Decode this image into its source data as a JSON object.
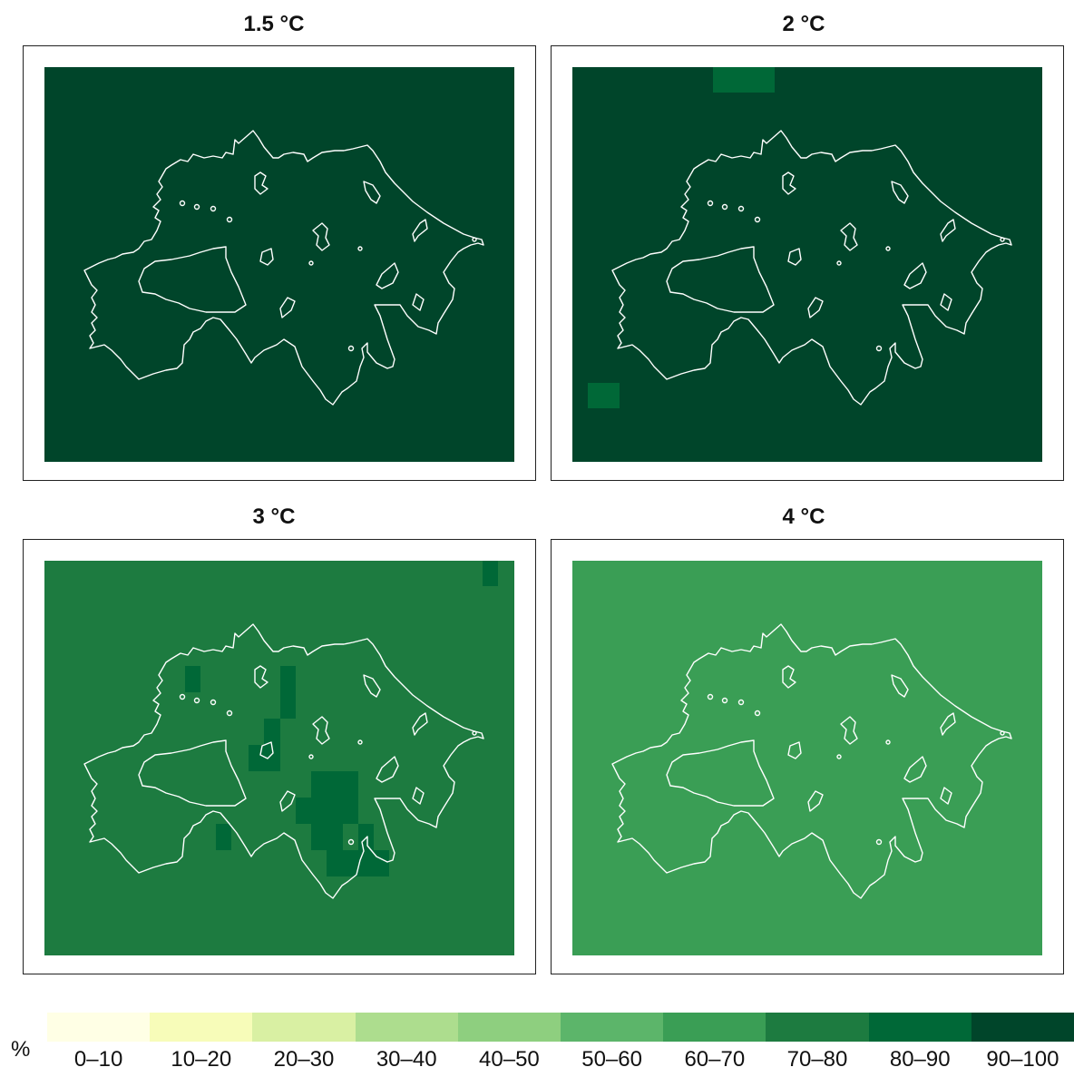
{
  "panels": [
    {
      "title": "1.5 °C"
    },
    {
      "title": "2 °C"
    },
    {
      "title": "3 °C"
    },
    {
      "title": "4 °C"
    }
  ],
  "colors": {
    "0-10": "#ffffe5",
    "10-20": "#f7fcb9",
    "20-30": "#d9f0a3",
    "30-40": "#addd8e",
    "40-50": "#78c679",
    "50-60": "#5cb56a",
    "60-70": "#3a9e55",
    "70-80": "#1d7b40",
    "80-90": "#006837",
    "90-100": "#00452a",
    "outline": "#ffffff"
  },
  "legend": {
    "unit": "%",
    "bins": [
      "0–10",
      "10–20",
      "20–30",
      "30–40",
      "40–50",
      "50–60",
      "60–70",
      "70–80",
      "80–90",
      "90–100"
    ]
  }
}
